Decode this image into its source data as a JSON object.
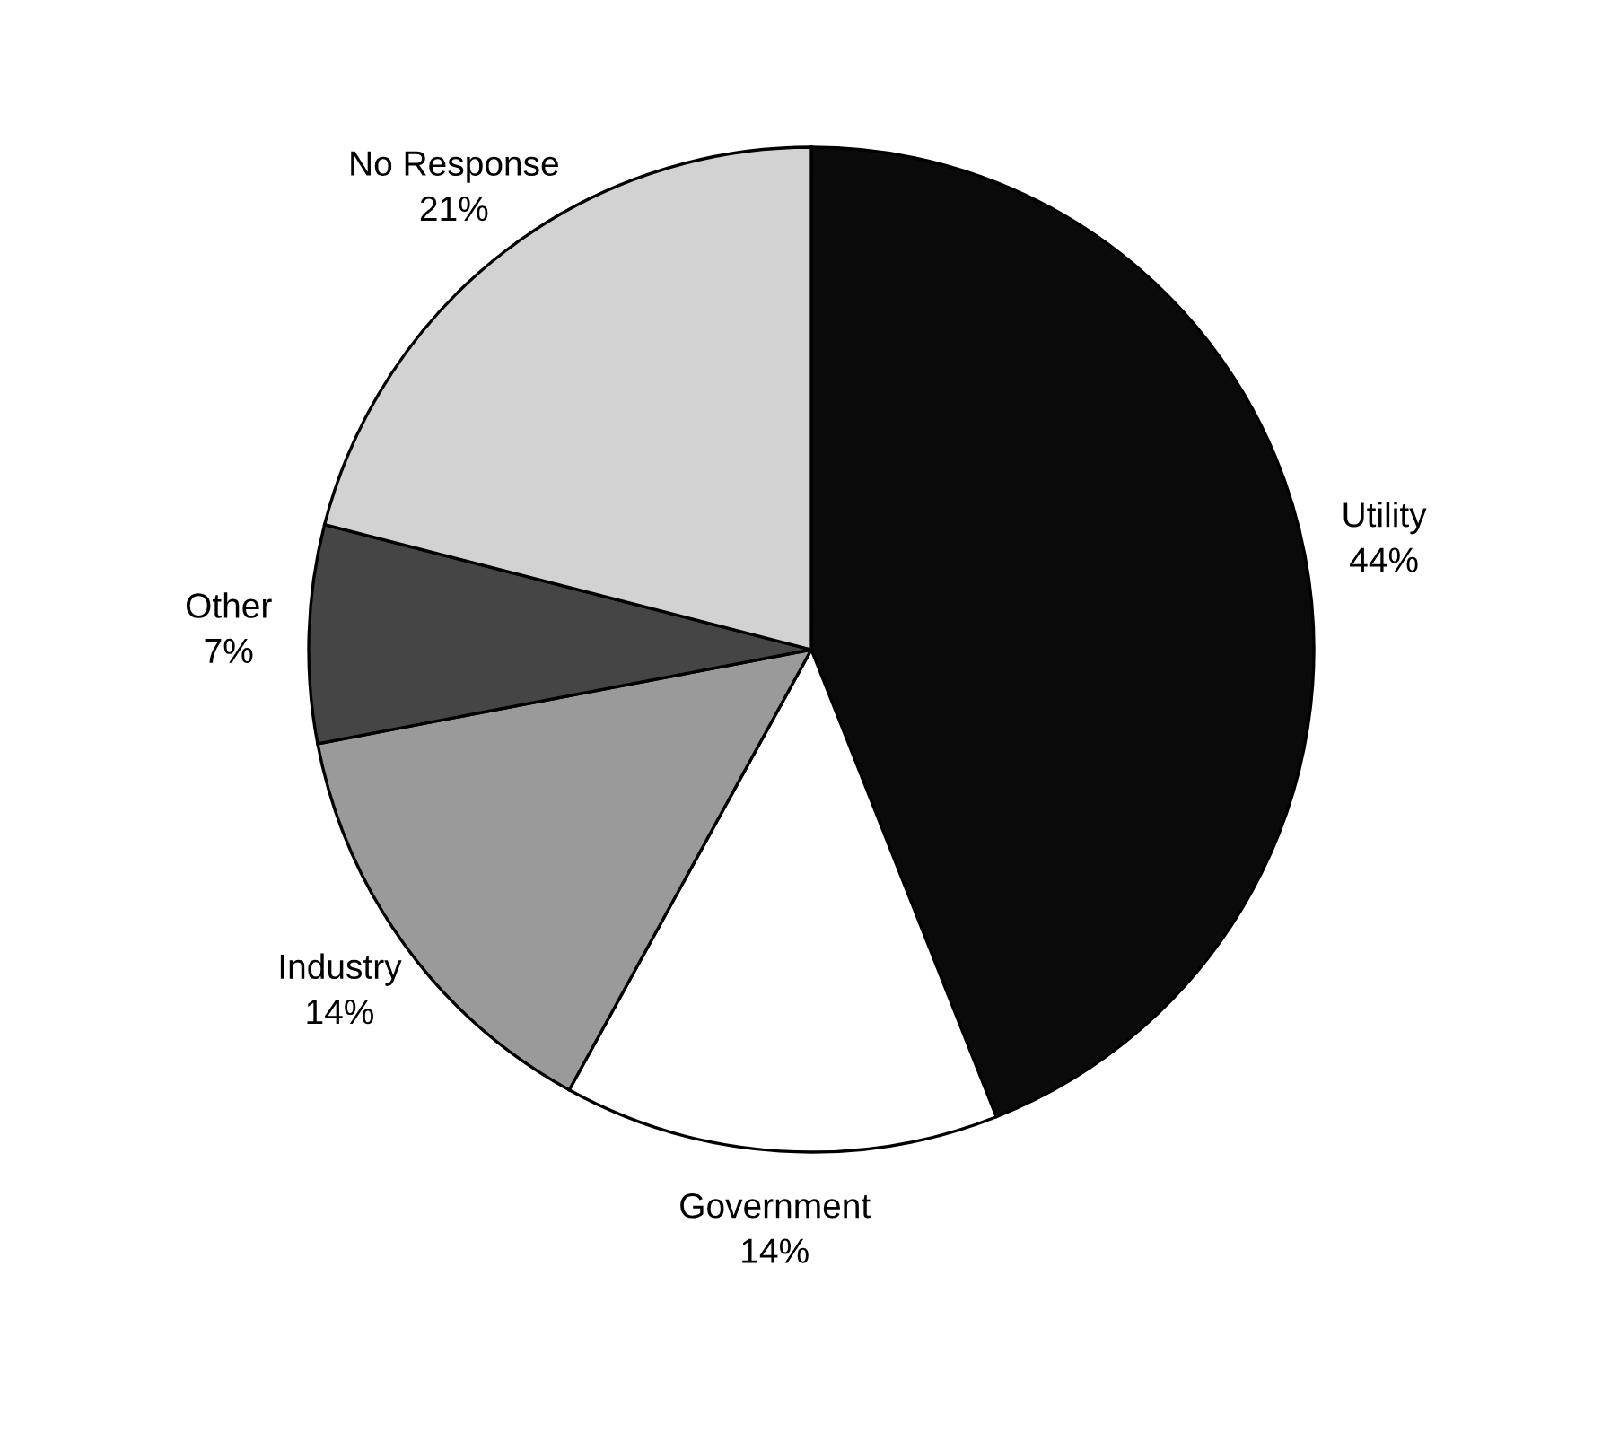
{
  "chart_data": {
    "type": "pie",
    "categories": [
      "Utility",
      "Government",
      "Industry",
      "Other",
      "No Response"
    ],
    "values": [
      44,
      14,
      14,
      7,
      21
    ],
    "value_labels": [
      "44%",
      "14%",
      "14%",
      "7%",
      "21%"
    ],
    "colors": [
      "#0a0a0a",
      "#ffffff",
      "#9a9a9a",
      "#454545",
      "#d2d2d2"
    ]
  }
}
